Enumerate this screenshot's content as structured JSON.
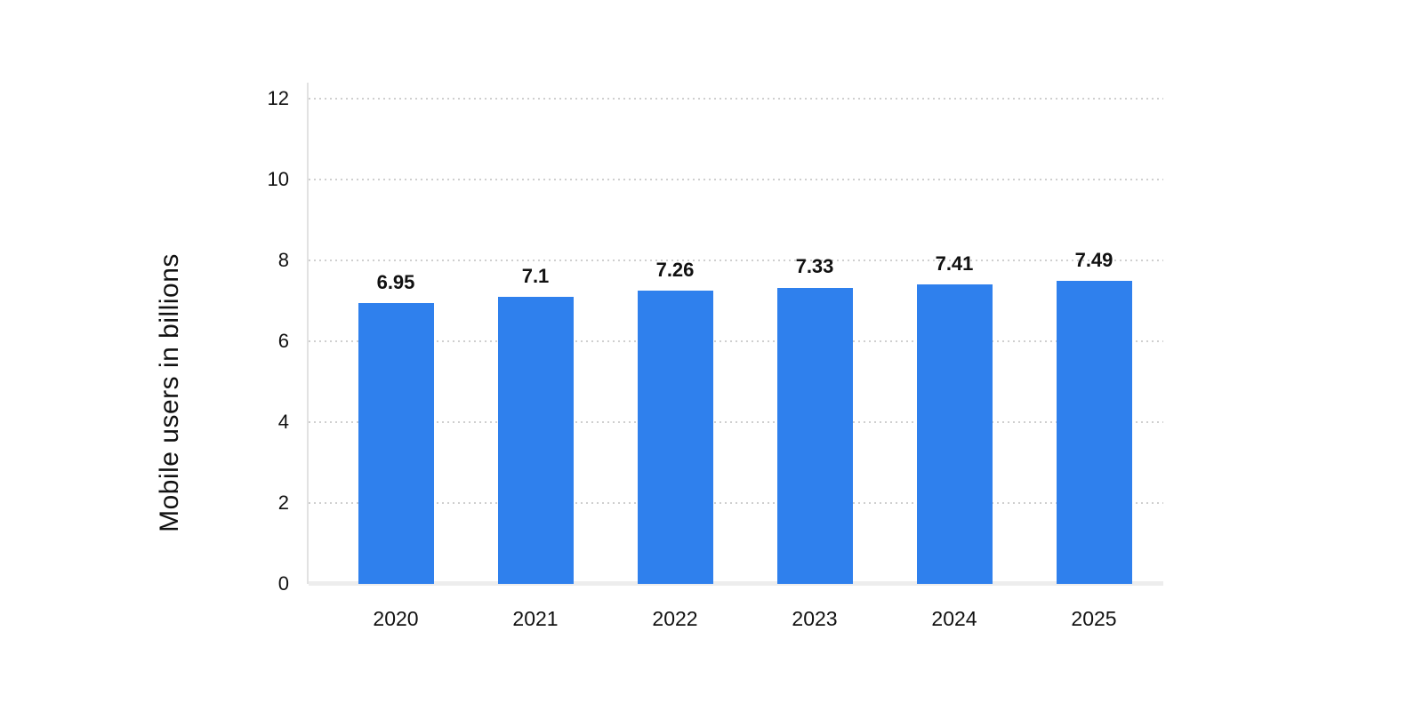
{
  "page": {
    "background": "#ffffff"
  },
  "chart_data": {
    "type": "bar",
    "title": "",
    "categories": [
      "2020",
      "2021",
      "2022",
      "2023",
      "2024",
      "2025"
    ],
    "values": [
      6.95,
      7.1,
      7.26,
      7.33,
      7.41,
      7.49
    ],
    "value_labels": [
      "6.95",
      "7.1",
      "7.26",
      "7.33",
      "7.41",
      "7.49"
    ],
    "xlabel": "",
    "ylabel": "Mobile users in billions",
    "ylim": [
      0,
      12
    ],
    "yticks": [
      0,
      2,
      4,
      6,
      8,
      10,
      12
    ],
    "grid": "horizontal-dotted",
    "legend_position": "none",
    "colors": {
      "bar": "#2f80ed",
      "grid": "#cfcfcf",
      "axis_line": "#e2e2e2",
      "baseline": "#ededed",
      "text": "#111111"
    }
  }
}
